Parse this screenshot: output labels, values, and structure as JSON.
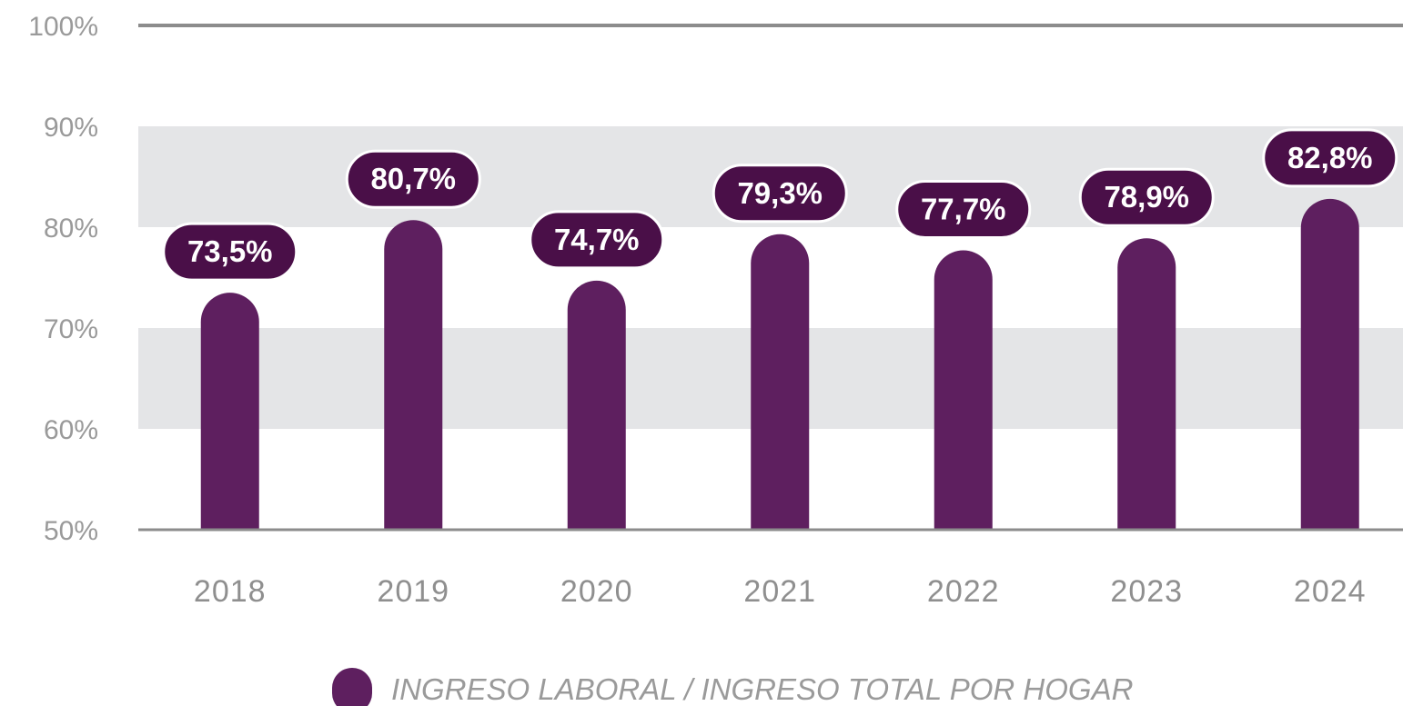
{
  "chart_data": {
    "type": "bar",
    "categories": [
      "2018",
      "2019",
      "2020",
      "2021",
      "2022",
      "2023",
      "2024"
    ],
    "series": [
      {
        "name": "INGRESO LABORAL / INGRESO TOTAL POR HOGAR",
        "values": [
          73.5,
          80.7,
          74.7,
          79.3,
          77.7,
          78.9,
          82.8
        ]
      }
    ],
    "data_labels": [
      "73,5%",
      "80,7%",
      "74,7%",
      "79,3%",
      "77,7%",
      "78,9%",
      "82,8%"
    ],
    "yticks": [
      "50%",
      "60%",
      "70%",
      "80%",
      "90%",
      "100%"
    ],
    "ytick_values": [
      50,
      60,
      70,
      80,
      90,
      100
    ],
    "ylim": [
      50,
      100
    ],
    "shaded_bands": [
      [
        60,
        70
      ],
      [
        80,
        90
      ]
    ],
    "legend": "bottom-center",
    "title": "",
    "xlabel": "",
    "ylabel": "",
    "colors": {
      "bar": "#5e1f5f",
      "label_bg": "#4a0f48",
      "band": "#e4e5e7",
      "axis": "#8c8c8c"
    }
  }
}
